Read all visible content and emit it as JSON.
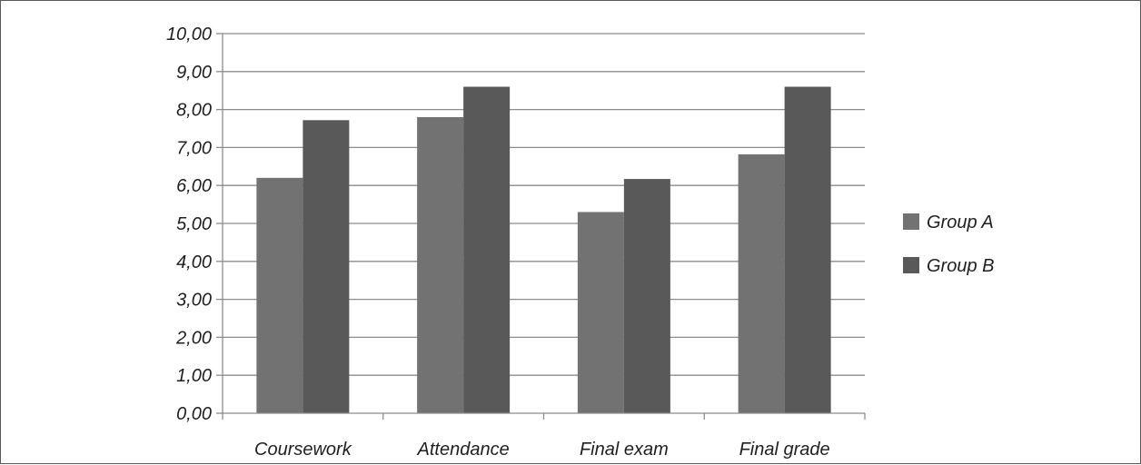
{
  "chart_data": {
    "type": "bar",
    "categories": [
      "Coursework",
      "Attendance",
      "Final exam",
      "Final grade"
    ],
    "series": [
      {
        "name": "Group A",
        "values": [
          6.2,
          7.8,
          5.3,
          6.82
        ],
        "color": "#727272"
      },
      {
        "name": "Group B",
        "values": [
          7.72,
          8.6,
          6.17,
          8.6
        ],
        "color": "#595959"
      }
    ],
    "y_ticks": [
      "0,00",
      "1,00",
      "2,00",
      "3,00",
      "4,00",
      "5,00",
      "6,00",
      "7,00",
      "8,00",
      "9,00",
      "10,00"
    ],
    "ylim": [
      0,
      10
    ],
    "grid": true,
    "legend_position": "right",
    "title": "",
    "xlabel": "",
    "ylabel": ""
  }
}
